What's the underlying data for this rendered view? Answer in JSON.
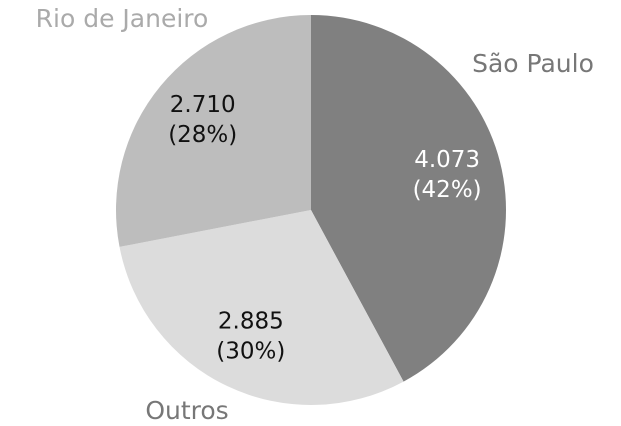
{
  "chart_data": {
    "type": "pie",
    "categories": [
      "São Paulo",
      "Outros",
      "Rio de Janeiro"
    ],
    "values": [
      4073,
      2885,
      2710
    ],
    "value_labels": [
      "4.073",
      "2.885",
      "2.710"
    ],
    "percent_labels": [
      "(42%)",
      "(30%)",
      "(28%)"
    ],
    "colors": [
      "#808080",
      "#dcdcdc",
      "#bdbdbd"
    ],
    "text_colors": [
      "#ffffff",
      "#111111",
      "#111111"
    ],
    "name_colors": [
      "#777777",
      "#777777",
      "#aaaaaa"
    ]
  }
}
